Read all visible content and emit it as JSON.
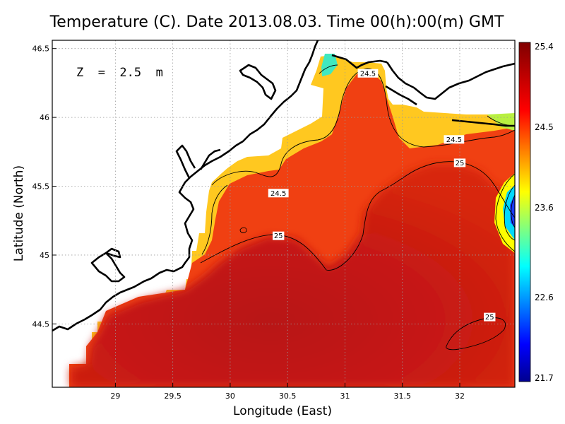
{
  "chart_data": {
    "type": "heatmap",
    "title": "Temperature (C). Date 2013.08.03. Time 00(h):00(m) GMT",
    "xlabel": "Longitude (East)",
    "ylabel": "Latitude (North)",
    "annotation": "Z  =  2.5  m",
    "xlim": [
      28.45,
      32.48
    ],
    "ylim": [
      44.04,
      46.56
    ],
    "x_ticks": [
      "29",
      "29.5",
      "30",
      "30.5",
      "31",
      "31.5",
      "32"
    ],
    "x_tick_values": [
      29,
      29.5,
      30,
      30.5,
      31,
      31.5,
      32
    ],
    "y_ticks": [
      "44.5",
      "45",
      "45.5",
      "46",
      "46.5"
    ],
    "y_tick_values": [
      44.5,
      45,
      45.5,
      46,
      46.5
    ],
    "grid": true,
    "colorbar": {
      "min": 21.7,
      "max": 25.4,
      "ticks": [
        "25.4",
        "24.5",
        "23.6",
        "22.6",
        "21.7"
      ],
      "tick_values": [
        25.4,
        24.5,
        23.6,
        22.6,
        21.7
      ]
    },
    "contour_labels": [
      {
        "text": "24.5",
        "lon": 31.2,
        "lat": 46.32
      },
      {
        "text": "24.5",
        "lon": 31.95,
        "lat": 45.84
      },
      {
        "text": "25",
        "lon": 32.0,
        "lat": 45.67
      },
      {
        "text": "24.5",
        "lon": 30.42,
        "lat": 45.45
      },
      {
        "text": "25",
        "lon": 30.42,
        "lat": 45.14
      },
      {
        "text": "25",
        "lon": 32.26,
        "lat": 44.55
      }
    ]
  },
  "colors": {
    "colormap": [
      "#00008f",
      "#0000ff",
      "#00ffff",
      "#ffff00",
      "#ff0000",
      "#800000"
    ],
    "land": "#ffffff",
    "coastline": "#000000",
    "grid": "#9a9a9a"
  }
}
